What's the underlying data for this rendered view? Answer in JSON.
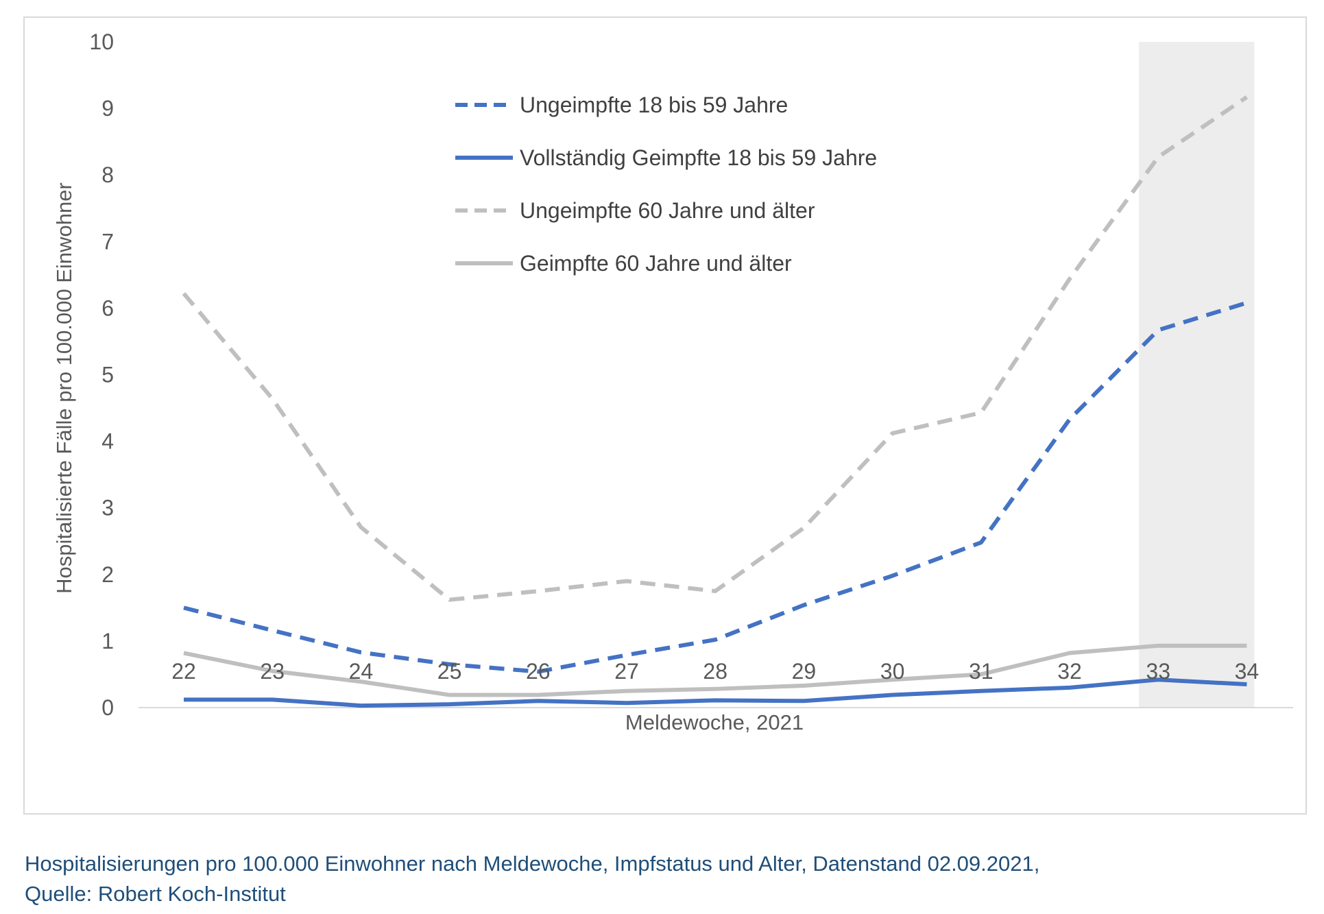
{
  "chart_data": {
    "type": "line",
    "title": "",
    "xlabel": "Meldewoche, 2021",
    "ylabel": "Hospitalisierte Fälle pro 100.000 Einwohner",
    "x": [
      "22",
      "23",
      "24",
      "25",
      "26",
      "27",
      "28",
      "29",
      "30",
      "31",
      "32",
      "33",
      "34"
    ],
    "ylim": [
      0,
      10
    ],
    "yticks": [
      0,
      1,
      2,
      3,
      4,
      5,
      6,
      7,
      8,
      9,
      10
    ],
    "grid": false,
    "highlight": {
      "from": "33",
      "to": "34",
      "color": "#ededed"
    },
    "legend_position": "top-center",
    "series": [
      {
        "name": "Ungeimpfte 18 bis 59 Jahre",
        "color": "#4472c4",
        "style": "dashed",
        "values": [
          1.5,
          1.16,
          0.83,
          0.65,
          0.54,
          0.79,
          1.02,
          1.54,
          1.98,
          2.48,
          4.33,
          5.67,
          6.08
        ]
      },
      {
        "name": "Vollständig Geimpfte 18 bis 59 Jahre",
        "color": "#4472c4",
        "style": "solid",
        "values": [
          0.12,
          0.12,
          0.03,
          0.05,
          0.1,
          0.07,
          0.11,
          0.1,
          0.19,
          0.25,
          0.3,
          0.42,
          0.35
        ]
      },
      {
        "name": "Ungeimpfte 60 Jahre und älter",
        "color": "#bfbfbf",
        "style": "dashed",
        "values": [
          6.22,
          4.64,
          2.71,
          1.62,
          1.75,
          1.9,
          1.75,
          2.7,
          4.12,
          4.43,
          6.44,
          8.27,
          9.17
        ]
      },
      {
        "name": "Geimpfte 60 Jahre und älter",
        "color": "#bfbfbf",
        "style": "solid",
        "values": [
          0.82,
          0.55,
          0.39,
          0.19,
          0.19,
          0.25,
          0.28,
          0.33,
          0.42,
          0.5,
          0.82,
          0.93,
          0.93
        ]
      }
    ]
  },
  "caption": {
    "line1": "Hospitalisierungen pro 100.000 Einwohner nach Meldewoche, Impfstatus und Alter, Datenstand 02.09.2021,",
    "line2": "Quelle: Robert Koch-Institut"
  }
}
